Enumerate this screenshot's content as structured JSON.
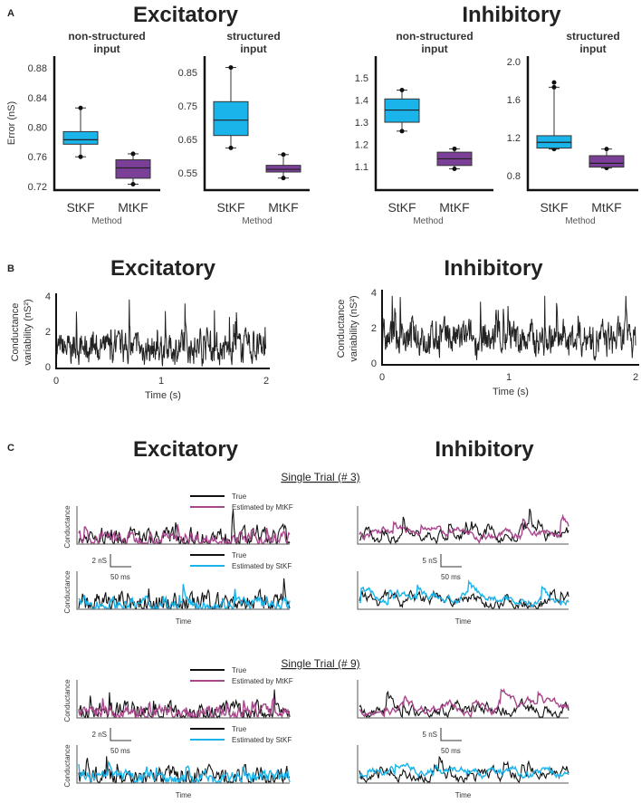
{
  "panels": {
    "a": "A",
    "b": "B",
    "c": "C"
  },
  "titles": {
    "excitatory": "Excitatory",
    "inhibitory": "Inhibitory"
  },
  "colors": {
    "stkf": "#1ab3ea",
    "mtkf": "#7b3f98",
    "mtkf_trace": "#a8468c",
    "true": "#111111"
  },
  "chart_data": [
    {
      "type": "box",
      "panel": "A",
      "group": "Excitatory",
      "title": [
        "non-structured",
        "input"
      ],
      "ylabel": "Error (nS)",
      "xlabel": "Method",
      "categories": [
        "StKF",
        "MtKF"
      ],
      "yticks": [
        "0.72",
        "0.76",
        "0.80",
        "0.84",
        "0.88"
      ],
      "ylim": [
        0.715,
        0.896
      ],
      "boxes": [
        {
          "min": 0.76,
          "q1": 0.777,
          "median": 0.783,
          "q3": 0.794,
          "max": 0.826
        },
        {
          "min": 0.723,
          "q1": 0.731,
          "median": 0.745,
          "q3": 0.756,
          "max": 0.764
        }
      ]
    },
    {
      "type": "box",
      "panel": "A",
      "group": "Excitatory",
      "title": [
        "structured",
        "input"
      ],
      "ylabel": "",
      "xlabel": "Method",
      "categories": [
        "StKF",
        "MtKF"
      ],
      "yticks": [
        "0.55",
        "0.65",
        "0.75",
        "0.85"
      ],
      "ylim": [
        0.499,
        0.899
      ],
      "boxes": [
        {
          "min": 0.625,
          "q1": 0.662,
          "median": 0.708,
          "q3": 0.763,
          "max": 0.865
        },
        {
          "min": 0.535,
          "q1": 0.553,
          "median": 0.561,
          "q3": 0.573,
          "max": 0.605
        }
      ]
    },
    {
      "type": "box",
      "panel": "A",
      "group": "Inhibitory",
      "title": [
        "non-structured",
        "input"
      ],
      "ylabel": "",
      "xlabel": "Method",
      "categories": [
        "StKF",
        "MtKF"
      ],
      "yticks": [
        "1.1",
        "1.2",
        "1.3",
        "1.4",
        "1.5"
      ],
      "ylim": [
        0.994,
        1.598
      ],
      "boxes": [
        {
          "min": 1.26,
          "q1": 1.3,
          "median": 1.355,
          "q3": 1.405,
          "max": 1.445
        },
        {
          "min": 1.09,
          "q1": 1.105,
          "median": 1.135,
          "q3": 1.165,
          "max": 1.18
        }
      ]
    },
    {
      "type": "box",
      "panel": "A",
      "group": "Inhibitory",
      "title": [
        "structured",
        "input"
      ],
      "ylabel": "",
      "xlabel": "Method",
      "categories": [
        "StKF",
        "MtKF"
      ],
      "yticks": [
        "0.8",
        "1.2",
        "1.6",
        "2.0"
      ],
      "ylim": [
        0.648,
        2.057
      ],
      "boxes": [
        {
          "min": 1.08,
          "q1": 1.09,
          "median": 1.15,
          "q3": 1.22,
          "max": 1.73,
          "outliers": [
            1.78
          ]
        },
        {
          "min": 0.88,
          "q1": 0.89,
          "median": 0.93,
          "q3": 1.01,
          "max": 1.08
        }
      ]
    },
    {
      "type": "line",
      "panel": "B",
      "title": "Excitatory",
      "xlabel": "Time (s)",
      "ylabel": [
        "Conductance",
        "variability (nS²)"
      ],
      "xticks": [
        "0",
        "1",
        "2"
      ],
      "yticks": [
        "0",
        "2",
        "4"
      ],
      "xlim": [
        0,
        2
      ],
      "ylim": [
        0,
        4
      ]
    },
    {
      "type": "line",
      "panel": "B",
      "title": "Inhibitory",
      "xlabel": "Time (s)",
      "ylabel": [
        "Conductance",
        "variability (nS²)"
      ],
      "xticks": [
        "0",
        "1",
        "2"
      ],
      "yticks": [
        "0",
        "2",
        "4"
      ],
      "xlim": [
        0,
        2
      ],
      "ylim": [
        0,
        4
      ]
    }
  ],
  "panel_c": {
    "ylabel": "Conductance",
    "xlabel": "Time",
    "trials": [
      {
        "title": "Single Trial (# 3)"
      },
      {
        "title": "Single Trial (# 9)"
      }
    ],
    "legend_mtkf": [
      "True",
      "Estimated by MtKF"
    ],
    "legend_stkf": [
      "True",
      "Estimated by StKF"
    ],
    "scale_exc": [
      "2 nS",
      "50 ms"
    ],
    "scale_inh": [
      "5 nS",
      "50 ms"
    ]
  }
}
